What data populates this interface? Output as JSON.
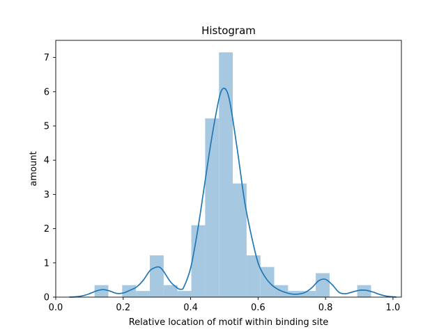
{
  "chart_data": {
    "type": "bar",
    "title": "Histogram",
    "xlabel": "Relative location of motif within binding site",
    "ylabel": "amount",
    "xlim": [
      0.0,
      1.025
    ],
    "ylim": [
      0,
      7.5
    ],
    "grid": false,
    "x_ticks": [
      0.0,
      0.2,
      0.4,
      0.6,
      0.8,
      1.0
    ],
    "x_tick_labels": [
      "0.0",
      "0.2",
      "0.4",
      "0.6",
      "0.8",
      "1.0"
    ],
    "y_ticks": [
      0,
      1,
      2,
      3,
      4,
      5,
      6,
      7
    ],
    "y_tick_labels": [
      "0",
      "1",
      "2",
      "3",
      "4",
      "5",
      "6",
      "7"
    ],
    "histogram": {
      "bin_edges": [
        0.115,
        0.156,
        0.197,
        0.238,
        0.279,
        0.32,
        0.361,
        0.402,
        0.443,
        0.484,
        0.525,
        0.566,
        0.607,
        0.648,
        0.689,
        0.73,
        0.771,
        0.812,
        0.853,
        0.894,
        0.935
      ],
      "values": [
        0.35,
        0.0,
        0.35,
        0.18,
        1.22,
        0.35,
        0.18,
        2.1,
        5.22,
        7.15,
        3.32,
        1.22,
        0.88,
        0.35,
        0.18,
        0.18,
        0.7,
        0.0,
        0.0,
        0.35
      ],
      "color": "#a6c8e0"
    },
    "kde": {
      "x": [
        0.04,
        0.06,
        0.08,
        0.1,
        0.12,
        0.14,
        0.16,
        0.18,
        0.2,
        0.22,
        0.24,
        0.26,
        0.28,
        0.3,
        0.31,
        0.32,
        0.34,
        0.36,
        0.37,
        0.38,
        0.4,
        0.42,
        0.44,
        0.46,
        0.48,
        0.49,
        0.5,
        0.51,
        0.52,
        0.54,
        0.56,
        0.58,
        0.6,
        0.62,
        0.64,
        0.66,
        0.68,
        0.7,
        0.72,
        0.74,
        0.76,
        0.78,
        0.8,
        0.82,
        0.84,
        0.86,
        0.88,
        0.9,
        0.92,
        0.94,
        0.96,
        0.98,
        1.0,
        1.01
      ],
      "y": [
        0.0,
        0.01,
        0.04,
        0.1,
        0.18,
        0.22,
        0.18,
        0.11,
        0.12,
        0.2,
        0.3,
        0.5,
        0.78,
        0.88,
        0.86,
        0.75,
        0.45,
        0.27,
        0.23,
        0.3,
        0.85,
        1.9,
        3.2,
        4.5,
        5.6,
        6.0,
        6.1,
        5.95,
        5.5,
        4.2,
        2.8,
        1.8,
        1.0,
        0.6,
        0.36,
        0.22,
        0.14,
        0.09,
        0.09,
        0.14,
        0.28,
        0.48,
        0.52,
        0.36,
        0.14,
        0.1,
        0.15,
        0.2,
        0.2,
        0.15,
        0.08,
        0.03,
        0.01,
        0.0
      ],
      "color": "#1f77b4"
    }
  }
}
